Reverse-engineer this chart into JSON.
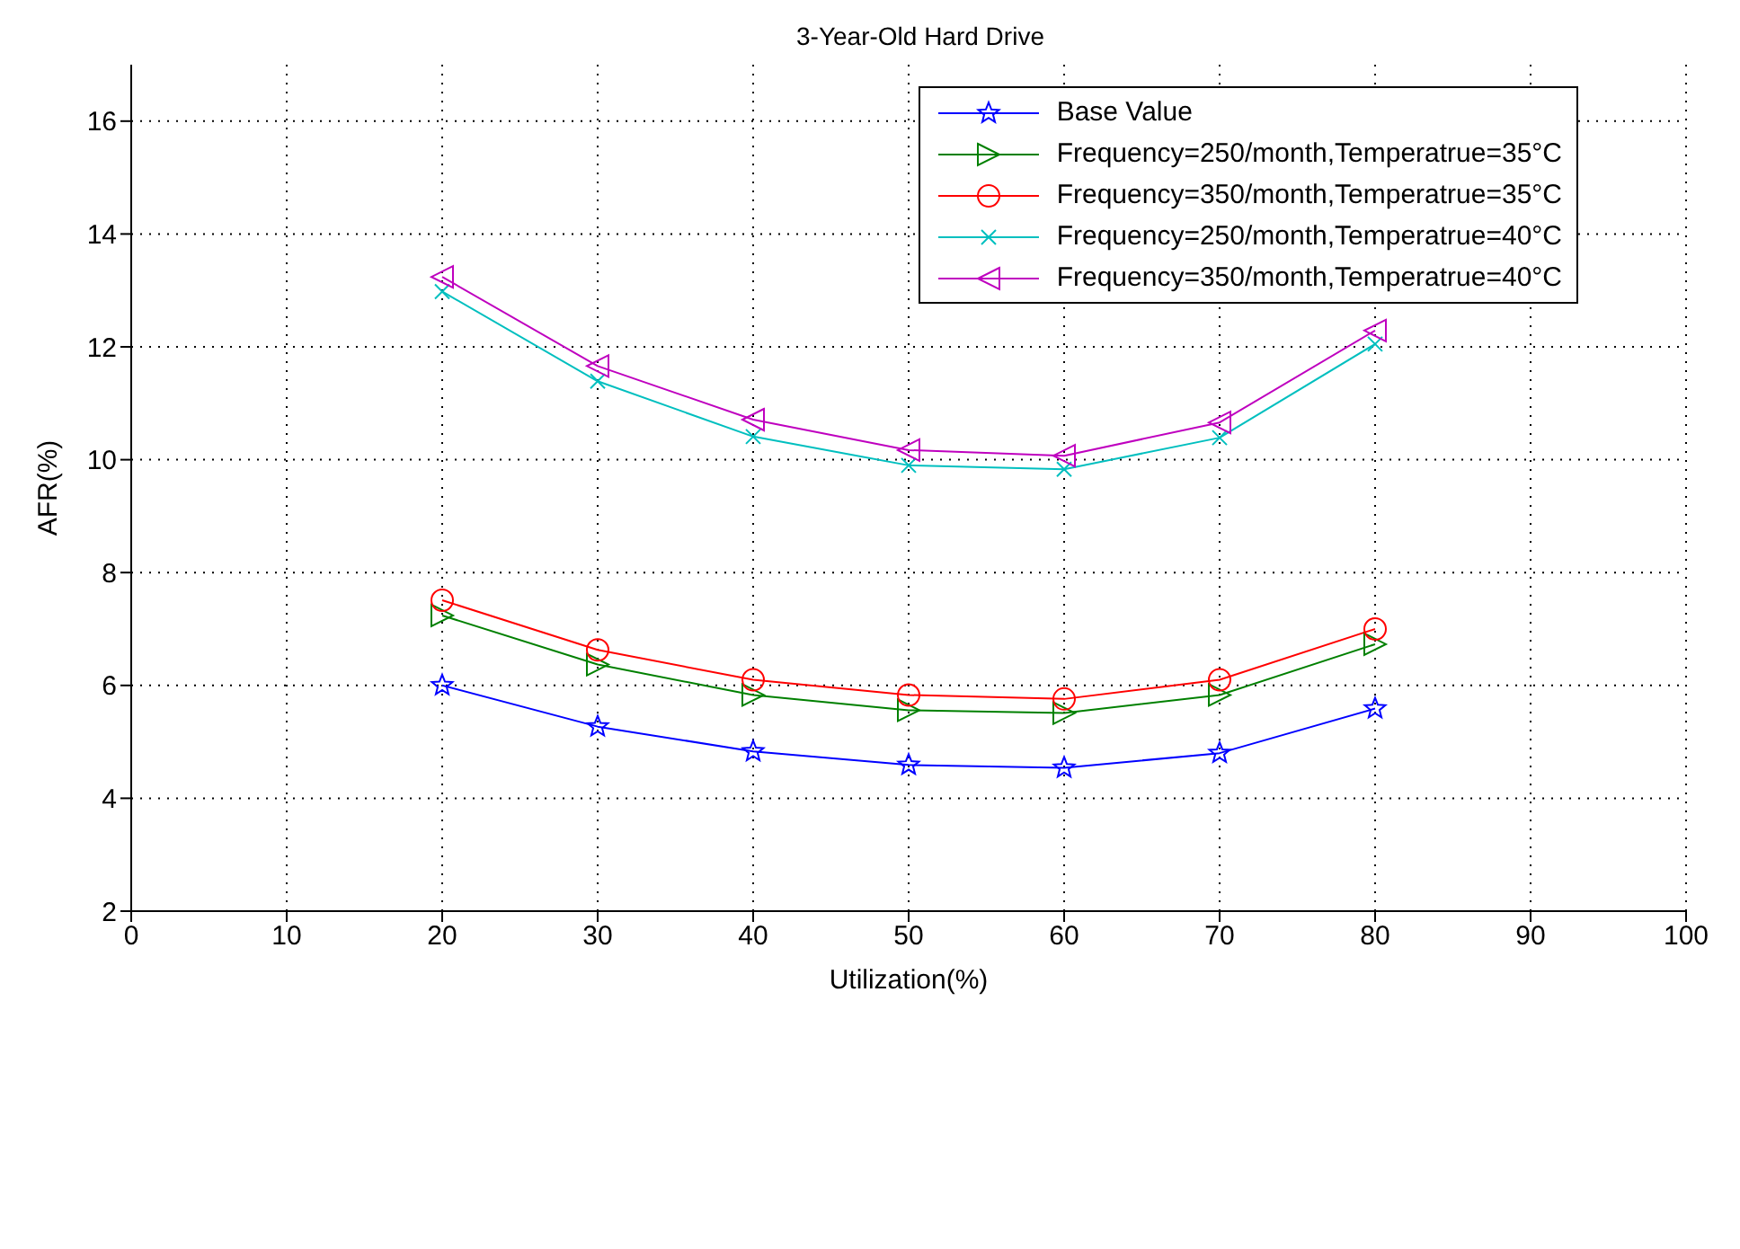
{
  "chart_data": {
    "type": "line",
    "title": "3-Year-Old Hard Drive",
    "xlabel": "Utilization(%)",
    "ylabel": "AFR(%)",
    "x": [
      20,
      30,
      40,
      50,
      60,
      70,
      80
    ],
    "series": [
      {
        "name": "Base Value",
        "color": "#0000ff",
        "marker": "star",
        "values": [
          6.0,
          5.27,
          4.83,
          4.59,
          4.54,
          4.8,
          5.59
        ]
      },
      {
        "name": "Frequency=250/month,Temperatrue=35°C",
        "color": "#008000",
        "marker": "triangle",
        "values": [
          7.24,
          6.37,
          5.83,
          5.56,
          5.51,
          5.83,
          6.73
        ]
      },
      {
        "name": "Frequency=350/month,Temperatrue=35°C",
        "color": "#ff0000",
        "marker": "circle",
        "values": [
          7.51,
          6.63,
          6.1,
          5.83,
          5.76,
          6.1,
          7.0
        ]
      },
      {
        "name": "Frequency=250/month,Temperatrue=40°C",
        "color": "#00bfbf",
        "marker": "cross",
        "values": [
          12.98,
          11.39,
          10.41,
          9.9,
          9.83,
          10.39,
          12.05
        ]
      },
      {
        "name": "Frequency=350/month,Temperatrue=40°C",
        "color": "#bf00bf",
        "marker": "triangle",
        "values": [
          13.24,
          11.66,
          10.71,
          10.17,
          10.07,
          10.66,
          12.29
        ]
      }
    ],
    "xlim": [
      0,
      100
    ],
    "xticks": [
      0,
      10,
      20,
      30,
      40,
      50,
      60,
      70,
      80,
      90,
      100
    ],
    "ylim": [
      2,
      17
    ],
    "yticks": [
      2,
      4,
      6,
      8,
      10,
      12,
      14,
      16
    ],
    "grid": true,
    "legend": "top right",
    "line_style": "solid"
  }
}
